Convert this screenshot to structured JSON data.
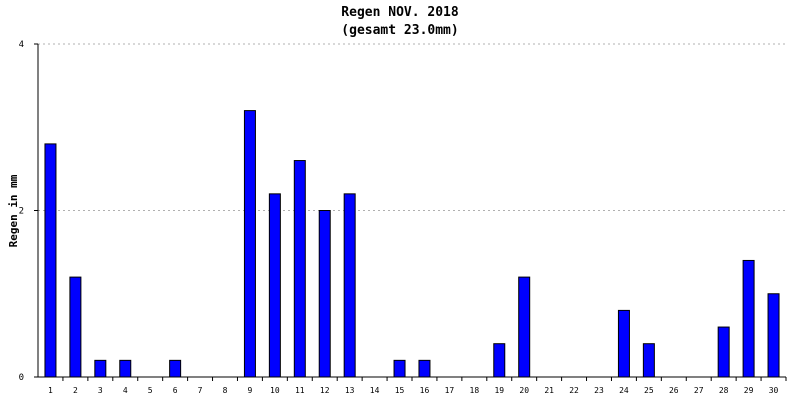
{
  "chart_data": {
    "type": "bar",
    "title": "Regen NOV. 2018",
    "subtitle": "(gesamt 23.0mm)",
    "xlabel": "",
    "ylabel": "Regen in mm",
    "ylim": [
      0,
      4
    ],
    "yticks": [
      "0",
      "2",
      "4"
    ],
    "grid": true,
    "bar_color": "#0000ff",
    "bar_edge_color": "#000000",
    "grid_color": "#b0b0b0",
    "categories": [
      "1",
      "2",
      "3",
      "4",
      "5",
      "6",
      "7",
      "8",
      "9",
      "10",
      "11",
      "12",
      "13",
      "14",
      "15",
      "16",
      "17",
      "18",
      "19",
      "20",
      "21",
      "22",
      "23",
      "24",
      "25",
      "26",
      "27",
      "28",
      "29",
      "30"
    ],
    "values": [
      2.8,
      1.2,
      0.2,
      0.2,
      0,
      0.2,
      0,
      0,
      3.2,
      2.2,
      2.6,
      2.0,
      2.2,
      0,
      0.2,
      0.2,
      0,
      0,
      0.4,
      1.2,
      0,
      0,
      0,
      0.8,
      0.4,
      0,
      0,
      0.6,
      1.4,
      1.0
    ]
  }
}
